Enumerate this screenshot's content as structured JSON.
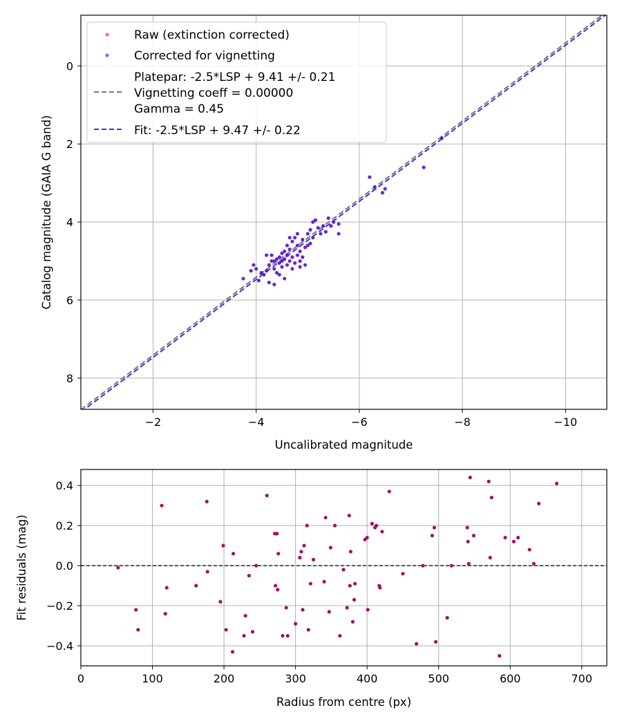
{
  "chart_data": [
    {
      "type": "scatter",
      "xlabel": "Uncalibrated magnitude",
      "ylabel": "Catalog magnitude (GAIA G band)",
      "xlim": [
        -0.6,
        -10.8
      ],
      "ylim": [
        8.8,
        -1.3
      ],
      "y_inverted": true,
      "x_inverted": true,
      "x_ticks": [
        -2,
        -4,
        -6,
        -8,
        -10
      ],
      "x_tick_labels": [
        "−2",
        "−4",
        "−6",
        "−8",
        "−10"
      ],
      "y_ticks": [
        0,
        2,
        4,
        6,
        8
      ],
      "y_tick_labels": [
        "0",
        "2",
        "4",
        "6",
        "8"
      ],
      "grid": true,
      "legend_position": "top-left",
      "legend": [
        {
          "label": "Raw (extinction corrected)",
          "kind": "marker",
          "color": "#ff4d4d"
        },
        {
          "label": "Corrected for vignetting",
          "kind": "marker",
          "color": "#4d4dff"
        },
        {
          "label": "Platepar: -2.5*LSP + 9.41 +/- 0.21",
          "label2": "Vignetting coeff = 0.00000",
          "label3": "Gamma = 0.45",
          "kind": "line",
          "color": "#777777"
        },
        {
          "label": "Fit: -2.5*LSP + 9.47 +/- 0.22",
          "kind": "line",
          "color": "#3333ee"
        }
      ],
      "lines": [
        {
          "name": "platepar",
          "slope": 1.0,
          "intercept": 9.41,
          "color": "#777777"
        },
        {
          "name": "fit",
          "slope": 1.0,
          "intercept": 9.47,
          "color": "#3333ee"
        }
      ],
      "point_color": "#5a10c8",
      "points": [
        [
          -3.75,
          5.45
        ],
        [
          -3.9,
          5.25
        ],
        [
          -3.95,
          5.1
        ],
        [
          -4.0,
          5.2
        ],
        [
          -4.05,
          5.5
        ],
        [
          -4.1,
          5.3
        ],
        [
          -4.15,
          5.35
        ],
        [
          -4.2,
          5.25
        ],
        [
          -4.25,
          5.1
        ],
        [
          -4.25,
          5.55
        ],
        [
          -4.3,
          5.0
        ],
        [
          -4.3,
          4.85
        ],
        [
          -4.35,
          5.2
        ],
        [
          -4.35,
          5.0
        ],
        [
          -4.35,
          5.6
        ],
        [
          -4.4,
          4.95
        ],
        [
          -4.4,
          5.3
        ],
        [
          -4.45,
          5.05
        ],
        [
          -4.45,
          4.9
        ],
        [
          -4.5,
          5.15
        ],
        [
          -4.5,
          5.0
        ],
        [
          -4.5,
          4.8
        ],
        [
          -4.55,
          5.45
        ],
        [
          -4.55,
          4.95
        ],
        [
          -4.6,
          4.85
        ],
        [
          -4.6,
          5.1
        ],
        [
          -4.6,
          4.6
        ],
        [
          -4.65,
          5.0
        ],
        [
          -4.65,
          4.7
        ],
        [
          -4.7,
          5.2
        ],
        [
          -4.7,
          4.9
        ],
        [
          -4.7,
          4.5
        ],
        [
          -4.75,
          5.05
        ],
        [
          -4.75,
          4.4
        ],
        [
          -4.8,
          4.85
        ],
        [
          -4.8,
          4.6
        ],
        [
          -4.8,
          4.3
        ],
        [
          -4.85,
          5.0
        ],
        [
          -4.85,
          4.75
        ],
        [
          -4.9,
          4.45
        ],
        [
          -4.9,
          4.9
        ],
        [
          -4.95,
          5.1
        ],
        [
          -5.0,
          4.6
        ],
        [
          -5.0,
          4.3
        ],
        [
          -5.05,
          4.55
        ],
        [
          -5.05,
          4.2
        ],
        [
          -5.1,
          4.4
        ],
        [
          -5.1,
          4.0
        ],
        [
          -5.15,
          3.95
        ],
        [
          -5.2,
          4.15
        ],
        [
          -5.25,
          4.3
        ],
        [
          -5.35,
          4.25
        ],
        [
          -5.4,
          3.9
        ],
        [
          -5.45,
          4.1
        ],
        [
          -5.5,
          4.0
        ],
        [
          -5.6,
          4.05
        ],
        [
          -5.6,
          4.3
        ],
        [
          -4.95,
          4.65
        ],
        [
          -4.55,
          4.75
        ],
        [
          -4.45,
          5.35
        ],
        [
          -6.2,
          2.85
        ],
        [
          -6.3,
          3.1
        ],
        [
          -6.45,
          3.25
        ],
        [
          -6.5,
          3.15
        ],
        [
          -7.25,
          2.6
        ],
        [
          -7.6,
          1.85
        ],
        [
          -4.2,
          4.85
        ],
        [
          -4.85,
          5.15
        ],
        [
          -5.3,
          4.1
        ],
        [
          -4.65,
          4.4
        ]
      ]
    },
    {
      "type": "scatter",
      "xlabel": "Radius from centre (px)",
      "ylabel": "Fit residuals (mag)",
      "xlim": [
        0,
        735
      ],
      "ylim": [
        -0.5,
        0.48
      ],
      "x_ticks": [
        0,
        100,
        200,
        300,
        400,
        500,
        600,
        700
      ],
      "x_tick_labels": [
        "0",
        "100",
        "200",
        "300",
        "400",
        "500",
        "600",
        "700"
      ],
      "y_ticks": [
        0.4,
        0.2,
        0.0,
        -0.2,
        -0.4
      ],
      "y_tick_labels": [
        "0.4",
        "0.2",
        "0.0",
        "−0.2",
        "−0.4"
      ],
      "grid": true,
      "reference_line": {
        "y": 0.0,
        "color": "#333333"
      },
      "point_color": "#a0106a",
      "points": [
        [
          52,
          -0.01
        ],
        [
          77,
          -0.22
        ],
        [
          80,
          -0.32
        ],
        [
          113,
          0.3
        ],
        [
          118,
          -0.24
        ],
        [
          120,
          -0.11
        ],
        [
          161,
          -0.1
        ],
        [
          176,
          0.32
        ],
        [
          177,
          -0.03
        ],
        [
          195,
          -0.18
        ],
        [
          199,
          0.1
        ],
        [
          203,
          -0.32
        ],
        [
          212,
          -0.43
        ],
        [
          213,
          0.06
        ],
        [
          228,
          -0.35
        ],
        [
          230,
          -0.25
        ],
        [
          235,
          -0.05
        ],
        [
          240,
          -0.33
        ],
        [
          245,
          0.0
        ],
        [
          260,
          0.35
        ],
        [
          271,
          0.16
        ],
        [
          272,
          -0.1
        ],
        [
          274,
          0.16
        ],
        [
          275,
          -0.12
        ],
        [
          276,
          0.06
        ],
        [
          282,
          -0.35
        ],
        [
          287,
          -0.21
        ],
        [
          289,
          -0.35
        ],
        [
          300,
          -0.29
        ],
        [
          306,
          0.04
        ],
        [
          308,
          0.07
        ],
        [
          310,
          -0.22
        ],
        [
          312,
          0.1
        ],
        [
          316,
          0.2
        ],
        [
          318,
          -0.32
        ],
        [
          321,
          -0.09
        ],
        [
          325,
          0.03
        ],
        [
          340,
          -0.08
        ],
        [
          342,
          0.24
        ],
        [
          347,
          -0.23
        ],
        [
          349,
          0.09
        ],
        [
          355,
          0.2
        ],
        [
          362,
          -0.35
        ],
        [
          367,
          -0.02
        ],
        [
          372,
          -0.21
        ],
        [
          375,
          0.25
        ],
        [
          376,
          -0.1
        ],
        [
          377,
          0.07
        ],
        [
          380,
          -0.28
        ],
        [
          382,
          -0.17
        ],
        [
          383,
          -0.09
        ],
        [
          397,
          0.13
        ],
        [
          400,
          0.14
        ],
        [
          401,
          -0.22
        ],
        [
          407,
          0.21
        ],
        [
          411,
          0.19
        ],
        [
          413,
          0.2
        ],
        [
          417,
          -0.1
        ],
        [
          418,
          -0.11
        ],
        [
          421,
          0.17
        ],
        [
          431,
          0.37
        ],
        [
          450,
          -0.04
        ],
        [
          469,
          -0.39
        ],
        [
          478,
          0.0
        ],
        [
          491,
          0.15
        ],
        [
          494,
          0.19
        ],
        [
          496,
          -0.38
        ],
        [
          512,
          -0.26
        ],
        [
          518,
          0.0
        ],
        [
          540,
          0.19
        ],
        [
          541,
          0.12
        ],
        [
          542,
          0.01
        ],
        [
          544,
          0.44
        ],
        [
          549,
          0.15
        ],
        [
          570,
          0.42
        ],
        [
          572,
          0.04
        ],
        [
          574,
          0.34
        ],
        [
          585,
          -0.45
        ],
        [
          593,
          0.14
        ],
        [
          605,
          0.12
        ],
        [
          611,
          0.14
        ],
        [
          627,
          0.08
        ],
        [
          633,
          0.01
        ],
        [
          640,
          0.31
        ],
        [
          665,
          0.41
        ]
      ]
    }
  ]
}
